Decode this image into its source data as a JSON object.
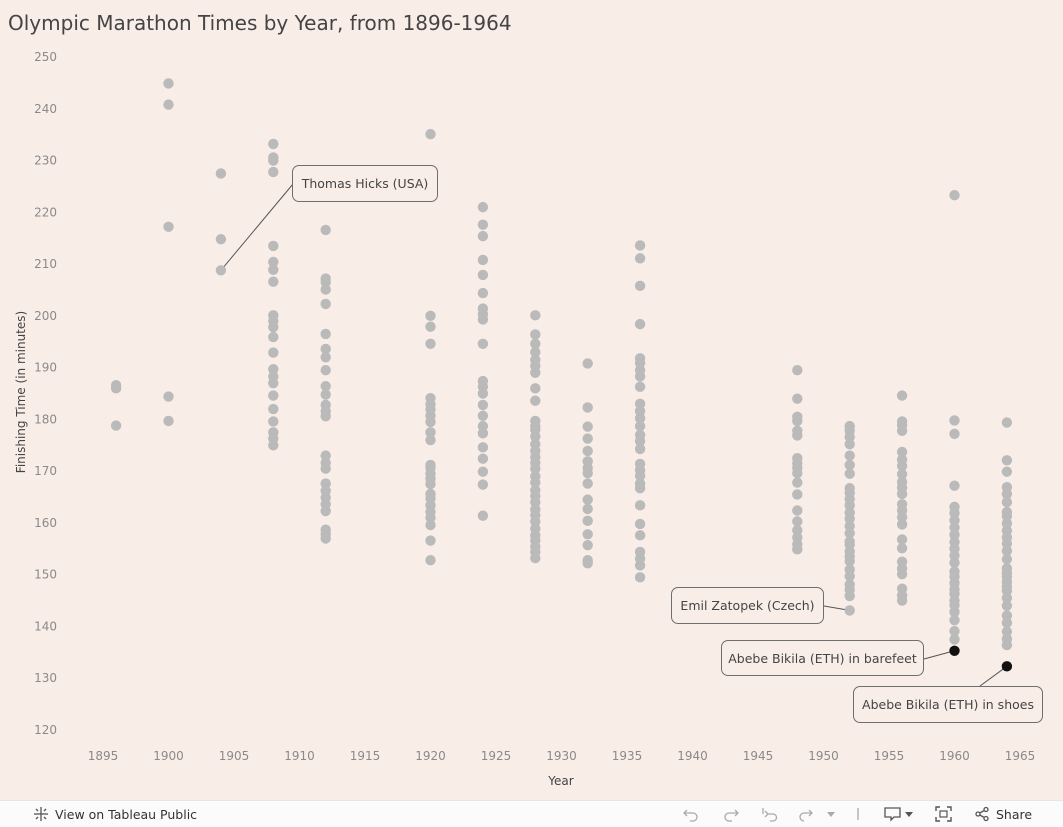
{
  "chart_data": {
    "type": "scatter",
    "title": "Olympic Marathon Times by Year, from 1896-1964",
    "xlabel": "Year",
    "ylabel": "Finishing Time (in minutes)",
    "xlim": [
      1890,
      1966
    ],
    "ylim": [
      118,
      252
    ],
    "xticks": [
      1895,
      1900,
      1905,
      1910,
      1915,
      1920,
      1925,
      1930,
      1935,
      1940,
      1945,
      1950,
      1955,
      1960,
      1965
    ],
    "yticks": [
      120,
      130,
      140,
      150,
      160,
      170,
      180,
      190,
      200,
      210,
      220,
      230,
      240,
      250
    ],
    "grid": false,
    "colors": {
      "point": "#bababa",
      "highlight": "#111111",
      "background": "#f9ede8",
      "axis_text": "#8a8a8a",
      "label_text": "#444444"
    },
    "series": [
      {
        "year": 1896,
        "times": [
          178.8,
          186.0,
          186.6
        ]
      },
      {
        "year": 1900,
        "times": [
          179.7,
          184.4,
          217.2,
          240.8,
          244.9
        ]
      },
      {
        "year": 1904,
        "times": [
          208.8,
          214.8,
          227.5
        ]
      },
      {
        "year": 1908,
        "times": [
          175.0,
          176.3,
          177.5,
          179.6,
          182.0,
          184.6,
          187.0,
          188.3,
          189.7,
          192.9,
          195.9,
          197.8,
          199.0,
          200.1,
          206.6,
          208.9,
          210.4,
          213.5,
          227.8,
          230.0,
          230.6,
          233.2
        ]
      },
      {
        "year": 1912,
        "times": [
          157.0,
          157.8,
          158.7,
          162.3,
          163.6,
          164.9,
          166.2,
          167.6,
          170.5,
          171.6,
          173.0,
          180.6,
          181.6,
          182.8,
          184.8,
          186.4,
          189.5,
          192.0,
          193.6,
          196.5,
          202.3,
          205.1,
          206.5,
          207.2,
          216.6
        ]
      },
      {
        "year": 1920,
        "times": [
          152.8,
          156.6,
          159.6,
          161.0,
          162.1,
          163.4,
          164.7,
          165.6,
          167.5,
          168.5,
          169.5,
          170.6,
          171.2,
          176.0,
          177.5,
          179.5,
          180.7,
          181.9,
          182.9,
          184.1,
          194.6,
          197.9,
          200.0,
          235.1
        ]
      },
      {
        "year": 1924,
        "times": [
          161.4,
          167.4,
          169.9,
          172.4,
          174.6,
          177.3,
          178.7,
          180.7,
          182.8,
          185.0,
          186.3,
          187.4,
          194.6,
          199.3,
          200.3,
          201.4,
          204.4,
          207.9,
          210.8,
          215.4,
          217.6,
          221.0
        ]
      },
      {
        "year": 1928,
        "times": [
          153.2,
          154.4,
          155.4,
          156.6,
          157.6,
          158.9,
          160.3,
          161.5,
          162.6,
          164.0,
          165.2,
          166.3,
          167.8,
          169.0,
          170.5,
          171.6,
          172.7,
          173.9,
          175.2,
          176.7,
          178.0,
          178.7,
          179.7,
          183.6,
          186.0,
          189.0,
          190.3,
          191.5,
          193.0,
          194.6,
          196.4,
          200.1
        ]
      },
      {
        "year": 1932,
        "times": [
          152.2,
          152.8,
          155.7,
          157.8,
          160.4,
          162.7,
          164.5,
          167.6,
          169.6,
          170.6,
          171.9,
          173.9,
          176.3,
          178.6,
          182.3,
          190.8
        ]
      },
      {
        "year": 1936,
        "times": [
          149.5,
          151.8,
          153.1,
          154.4,
          157.6,
          159.8,
          163.4,
          166.7,
          167.6,
          169.1,
          170.2,
          171.4,
          174.3,
          175.8,
          177.0,
          178.7,
          180.2,
          181.6,
          183.0,
          186.3,
          188.3,
          189.5,
          190.9,
          191.8,
          198.4,
          205.8,
          211.1,
          213.6
        ]
      },
      {
        "year": 1948,
        "times": [
          154.9,
          155.9,
          157.2,
          158.6,
          160.3,
          162.4,
          165.5,
          167.8,
          169.6,
          170.6,
          171.5,
          172.5,
          176.9,
          177.8,
          179.7,
          180.5,
          184.0,
          189.5
        ]
      },
      {
        "year": 1952,
        "times": [
          143.1,
          145.9,
          147.1,
          148.1,
          149.7,
          151.0,
          152.6,
          153.5,
          154.5,
          155.8,
          156.4,
          158.0,
          159.4,
          160.8,
          162.0,
          163.4,
          164.6,
          165.8,
          166.7,
          169.5,
          171.2,
          173.0,
          175.2,
          176.6,
          177.8,
          178.7
        ]
      },
      {
        "year": 1956,
        "times": [
          145.0,
          146.0,
          147.3,
          150.1,
          151.2,
          152.5,
          155.1,
          156.8,
          159.7,
          161.1,
          162.4,
          163.6,
          165.6,
          166.8,
          167.9,
          169.4,
          171.0,
          172.2,
          173.7,
          177.8,
          178.9,
          179.6,
          184.6
        ]
      },
      {
        "year": 1960,
        "times": [
          137.5,
          139.1,
          141.2,
          142.8,
          144.1,
          145.0,
          146.3,
          147.2,
          148.4,
          149.6,
          150.6,
          152.3,
          153.7,
          155.0,
          156.3,
          157.7,
          159.1,
          160.5,
          161.9,
          163.1,
          167.2,
          177.2,
          179.8,
          223.3
        ]
      },
      {
        "year": 1964,
        "times": [
          136.4,
          137.6,
          139.0,
          140.7,
          142.1,
          144.0,
          145.5,
          146.9,
          147.7,
          148.6,
          149.6,
          150.4,
          151.2,
          153.0,
          154.6,
          156.0,
          157.2,
          158.5,
          159.9,
          161.3,
          162.1,
          164.0,
          165.6,
          166.9,
          169.9,
          172.1,
          179.4
        ]
      }
    ],
    "highlights": [
      {
        "year": 1960,
        "time": 135.3
      },
      {
        "year": 1964,
        "time": 132.3
      }
    ],
    "annotations": [
      {
        "text": "Thomas Hicks (USA)",
        "year": 1904,
        "time": 208.8
      },
      {
        "text": "Emil Zatopek (Czech)",
        "year": 1952,
        "time": 143.1
      },
      {
        "text": "Abebe Bikila (ETH) in barefeet",
        "year": 1960,
        "time": 135.3
      },
      {
        "text": "Abebe Bikila (ETH) in shoes",
        "year": 1964,
        "time": 132.3
      }
    ]
  },
  "toolbar": {
    "view_label": "View on Tableau Public",
    "share_label": "Share",
    "icons": [
      "tableau-logo-icon",
      "undo-icon",
      "redo-icon",
      "revert-icon",
      "refresh-icon",
      "pause-icon",
      "comment-icon",
      "fullscreen-icon",
      "share-icon"
    ]
  }
}
